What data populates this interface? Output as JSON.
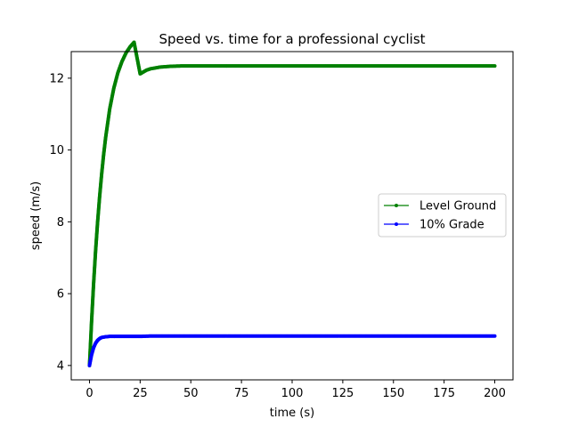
{
  "chart_data": {
    "type": "line",
    "title": "Speed vs. time for a professional cyclist",
    "xlabel": "time (s)",
    "ylabel": "speed (m/s)",
    "xlim": [
      -9,
      209
    ],
    "ylim": [
      3.6,
      12.74
    ],
    "xticks": [
      0,
      25,
      50,
      75,
      100,
      125,
      150,
      175,
      200
    ],
    "xtick_labels": [
      "0",
      "25",
      "50",
      "75",
      "100",
      "125",
      "150",
      "175",
      "200"
    ],
    "yticks": [
      4,
      6,
      8,
      10,
      12
    ],
    "ytick_labels": [
      "4",
      "6",
      "8",
      "10",
      "12"
    ],
    "grid": false,
    "legend_position": "center-right",
    "series": [
      {
        "name": "Level Ground",
        "color": "#008000",
        "x": [
          0,
          1,
          2,
          3,
          4,
          5,
          6,
          7,
          8,
          10,
          12,
          14,
          16,
          18,
          20,
          22,
          25,
          28,
          30,
          35,
          40,
          45,
          50,
          55,
          60,
          70,
          80,
          100,
          125,
          150,
          175,
          200
        ],
        "y": [
          4.0,
          5.19,
          6.25,
          7.18,
          7.99,
          8.7,
          9.33,
          9.88,
          10.36,
          11.15,
          11.72,
          12.15,
          12.46,
          12.7,
          12.87,
          13.0,
          12.12,
          12.22,
          12.26,
          12.31,
          12.33,
          12.34,
          12.34,
          12.34,
          12.34,
          12.34,
          12.34,
          12.34,
          12.34,
          12.34,
          12.34,
          12.34
        ]
      },
      {
        "name": "10% Grade",
        "color": "#0000ff",
        "x": [
          0,
          1,
          2,
          3,
          4,
          5,
          6,
          8,
          10,
          12,
          15,
          20,
          25,
          30,
          40,
          50,
          75,
          100,
          125,
          150,
          175,
          200
        ],
        "y": [
          4.0,
          4.29,
          4.49,
          4.62,
          4.7,
          4.75,
          4.78,
          4.8,
          4.81,
          4.81,
          4.81,
          4.81,
          4.81,
          4.82,
          4.82,
          4.82,
          4.82,
          4.82,
          4.82,
          4.82,
          4.82,
          4.82
        ]
      }
    ]
  }
}
